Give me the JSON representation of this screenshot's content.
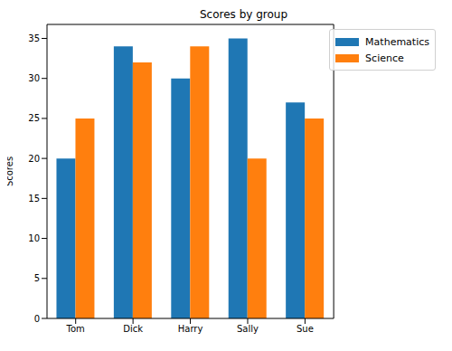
{
  "chart_data": {
    "type": "bar",
    "title": "Scores by group",
    "y_label": "Scores",
    "categories": [
      "Tom",
      "Dick",
      "Harry",
      "Sally",
      "Sue"
    ],
    "series": [
      {
        "name": "Mathematics",
        "color": "#1f77b4",
        "values": [
          20,
          34,
          30,
          35,
          27
        ]
      },
      {
        "name": "Science",
        "color": "#ff7f0e",
        "values": [
          25,
          32,
          34,
          20,
          25
        ]
      }
    ],
    "ylim": [
      0,
      36.75
    ],
    "yticks": [
      0,
      5,
      10,
      15,
      20,
      25,
      30,
      35
    ],
    "grid": false,
    "legend": "upper right"
  }
}
